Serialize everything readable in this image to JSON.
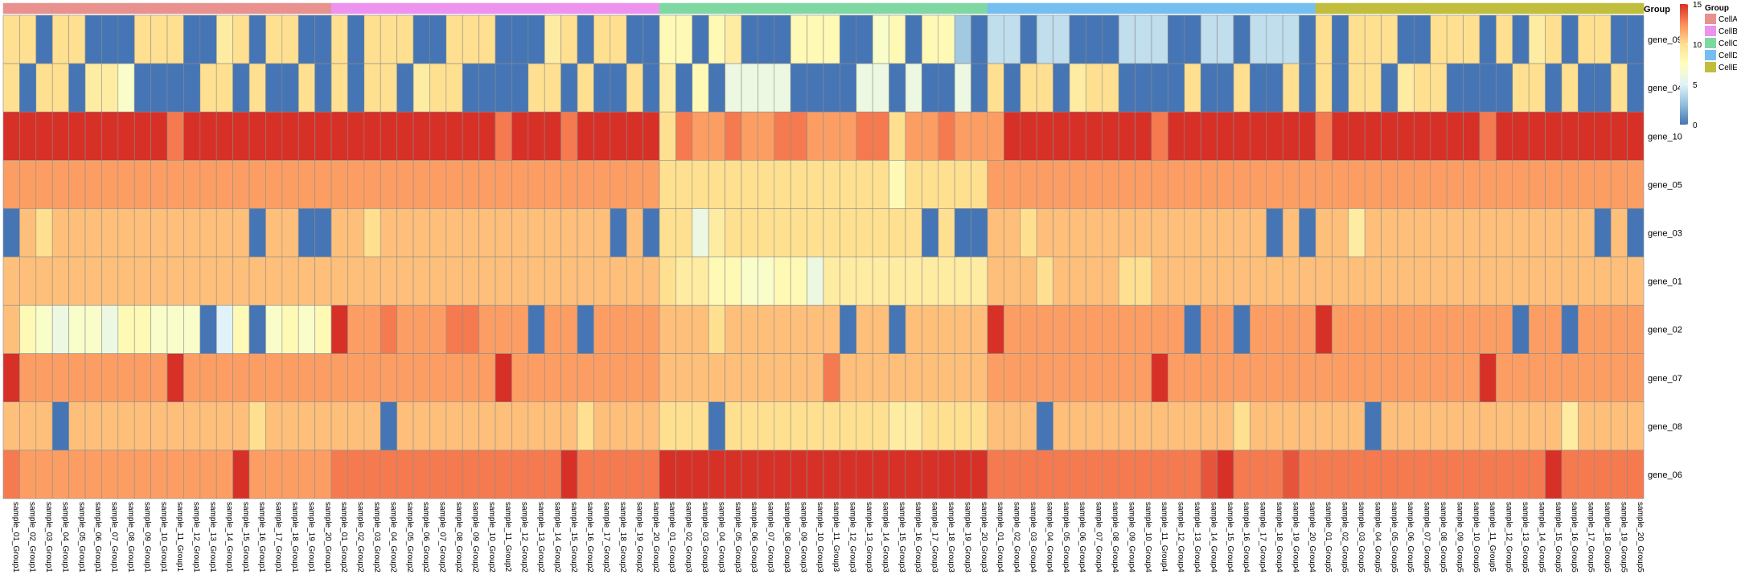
{
  "chart_data": {
    "type": "heatmap",
    "annotation_title": "Group",
    "annotation_legend_title": "Group",
    "color_scale": {
      "min": 0,
      "max": 15,
      "ticks": [
        0,
        5,
        10,
        15
      ],
      "colors": [
        "#4575b4",
        "#91bfdb",
        "#e0f3f8",
        "#ffffbf",
        "#fee090",
        "#fc8d59",
        "#d73027"
      ]
    },
    "groups": [
      {
        "name": "CellA",
        "color": "#e8918f"
      },
      {
        "name": "CellB",
        "color": "#ee92ef"
      },
      {
        "name": "CellC",
        "color": "#7fd8a2"
      },
      {
        "name": "CellD",
        "color": "#74bff0"
      },
      {
        "name": "CellE",
        "color": "#c0be3c"
      }
    ],
    "group_sizes": [
      20,
      20,
      20,
      20,
      20
    ],
    "rows": [
      "gene_09",
      "gene_04",
      "gene_10",
      "gene_05",
      "gene_03",
      "gene_01",
      "gene_02",
      "gene_07",
      "gene_08",
      "gene_06"
    ],
    "columns": [
      "sample_01_Group1",
      "sample_02_Group1",
      "sample_03_Group1",
      "sample_04_Group1",
      "sample_05_Group1",
      "sample_06_Group1",
      "sample_07_Group1",
      "sample_08_Group1",
      "sample_09_Group1",
      "sample_10_Group1",
      "sample_11_Group1",
      "sample_12_Group1",
      "sample_13_Group1",
      "sample_14_Group1",
      "sample_15_Group1",
      "sample_16_Group1",
      "sample_17_Group1",
      "sample_18_Group1",
      "sample_19_Group1",
      "sample_20_Group1",
      "sample_01_Group2",
      "sample_02_Group2",
      "sample_03_Group2",
      "sample_04_Group2",
      "sample_05_Group2",
      "sample_06_Group2",
      "sample_07_Group2",
      "sample_08_Group2",
      "sample_09_Group2",
      "sample_10_Group2",
      "sample_11_Group2",
      "sample_12_Group2",
      "sample_13_Group2",
      "sample_14_Group2",
      "sample_15_Group2",
      "sample_16_Group2",
      "sample_17_Group2",
      "sample_18_Group2",
      "sample_19_Group2",
      "sample_20_Group2",
      "sample_01_Group3",
      "sample_02_Group3",
      "sample_03_Group3",
      "sample_04_Group3",
      "sample_05_Group3",
      "sample_06_Group3",
      "sample_07_Group3",
      "sample_08_Group3",
      "sample_09_Group3",
      "sample_10_Group3",
      "sample_11_Group3",
      "sample_12_Group3",
      "sample_13_Group3",
      "sample_14_Group3",
      "sample_15_Group3",
      "sample_16_Group3",
      "sample_17_Group3",
      "sample_18_Group3",
      "sample_19_Group3",
      "sample_20_Group3",
      "sample_01_Group4",
      "sample_02_Group4",
      "sample_03_Group4",
      "sample_04_Group4",
      "sample_05_Group4",
      "sample_06_Group4",
      "sample_07_Group4",
      "sample_08_Group4",
      "sample_09_Group4",
      "sample_10_Group4",
      "sample_11_Group4",
      "sample_12_Group4",
      "sample_13_Group4",
      "sample_14_Group4",
      "sample_15_Group4",
      "sample_16_Group4",
      "sample_17_Group4",
      "sample_18_Group4",
      "sample_19_Group4",
      "sample_20_Group4",
      "sample_01_Group5",
      "sample_02_Group5",
      "sample_03_Group5",
      "sample_04_Group5",
      "sample_05_Group5",
      "sample_06_Group5",
      "sample_07_Group5",
      "sample_08_Group5",
      "sample_09_Group5",
      "sample_10_Group5",
      "sample_11_Group5",
      "sample_12_Group5",
      "sample_13_Group5",
      "sample_14_Group5",
      "sample_15_Group5",
      "sample_16_Group5",
      "sample_17_Group5",
      "sample_18_Group5",
      "sample_19_Group5",
      "sample_20_Group5"
    ],
    "values": [
      [
        10,
        10,
        0,
        10,
        10,
        0,
        0,
        0,
        10,
        10,
        10,
        0,
        0,
        9,
        10,
        0,
        10,
        10,
        0,
        0,
        10,
        0,
        10,
        10,
        10,
        0,
        0,
        10,
        10,
        10,
        0,
        0,
        0,
        9,
        10,
        0,
        10,
        10,
        0,
        0,
        8,
        8,
        0,
        8,
        9,
        0,
        0,
        0,
        8,
        8,
        8,
        0,
        0,
        7,
        8,
        0,
        8,
        8,
        3,
        0,
        4,
        4,
        0,
        4,
        4,
        0,
        0,
        0,
        4,
        4,
        4,
        0,
        0,
        4,
        4,
        0,
        4,
        4,
        4,
        0,
        10,
        0,
        10,
        10,
        10,
        0,
        0,
        10,
        10,
        10,
        0,
        10,
        0,
        9,
        10,
        0,
        10,
        10,
        0,
        0
      ],
      [
        10,
        0,
        10,
        10,
        0,
        9,
        9,
        7,
        0,
        0,
        0,
        0,
        10,
        10,
        0,
        10,
        0,
        0,
        10,
        0,
        10,
        0,
        10,
        10,
        0,
        9,
        10,
        10,
        0,
        0,
        0,
        0,
        10,
        10,
        0,
        10,
        0,
        0,
        10,
        0,
        9,
        0,
        8,
        0,
        6,
        6,
        6,
        6,
        0,
        0,
        0,
        0,
        6,
        6,
        0,
        6,
        0,
        0,
        6,
        0,
        10,
        0,
        10,
        10,
        0,
        9,
        10,
        10,
        0,
        0,
        0,
        0,
        10,
        0,
        0,
        10,
        0,
        0,
        10,
        0,
        10,
        0,
        10,
        10,
        0,
        9,
        10,
        10,
        0,
        0,
        0,
        0,
        10,
        10,
        0,
        10,
        0,
        0,
        10,
        0
      ],
      [
        15,
        15,
        15,
        15,
        15,
        15,
        15,
        15,
        15,
        15,
        13,
        15,
        15,
        15,
        15,
        15,
        15,
        15,
        15,
        15,
        15,
        15,
        15,
        15,
        15,
        15,
        15,
        15,
        15,
        15,
        13,
        15,
        15,
        15,
        13,
        15,
        15,
        15,
        15,
        15,
        10,
        13,
        12,
        12,
        13,
        12,
        12,
        13,
        13,
        12,
        12,
        12,
        13,
        13,
        10,
        12,
        12,
        13,
        12,
        12,
        12,
        15,
        15,
        15,
        15,
        15,
        15,
        15,
        15,
        15,
        13,
        15,
        15,
        15,
        15,
        15,
        15,
        15,
        15,
        15,
        13,
        15,
        15,
        15,
        15,
        15,
        15,
        15,
        15,
        15,
        13,
        15,
        15,
        15,
        15,
        15,
        15,
        15,
        15,
        15
      ],
      [
        12,
        12,
        12,
        12,
        12,
        12,
        12,
        12,
        12,
        12,
        12,
        12,
        12,
        12,
        12,
        12,
        12,
        12,
        12,
        12,
        12,
        12,
        12,
        12,
        12,
        12,
        12,
        12,
        12,
        12,
        12,
        12,
        12,
        12,
        12,
        12,
        12,
        12,
        12,
        12,
        10,
        10,
        10,
        10,
        10,
        10,
        10,
        10,
        10,
        10,
        10,
        10,
        10,
        10,
        8,
        10,
        10,
        10,
        10,
        10,
        12,
        12,
        12,
        12,
        12,
        12,
        12,
        12,
        12,
        12,
        12,
        12,
        12,
        12,
        12,
        12,
        12,
        12,
        12,
        12,
        12,
        12,
        12,
        12,
        12,
        12,
        12,
        12,
        12,
        12,
        12,
        12,
        12,
        12,
        12,
        12,
        12,
        12,
        12,
        12
      ],
      [
        0,
        11,
        10,
        11,
        11,
        11,
        11,
        11,
        11,
        11,
        11,
        11,
        11,
        11,
        11,
        0,
        11,
        11,
        0,
        0,
        11,
        11,
        10,
        11,
        11,
        11,
        11,
        11,
        11,
        11,
        11,
        11,
        11,
        11,
        11,
        11,
        11,
        0,
        11,
        0,
        10,
        10,
        6,
        9,
        10,
        10,
        10,
        10,
        10,
        10,
        10,
        10,
        10,
        10,
        10,
        10,
        0,
        10,
        0,
        0,
        11,
        11,
        10,
        11,
        11,
        11,
        11,
        11,
        11,
        11,
        11,
        11,
        11,
        11,
        11,
        11,
        11,
        0,
        11,
        0,
        11,
        11,
        9,
        11,
        11,
        11,
        11,
        11,
        11,
        11,
        11,
        11,
        11,
        11,
        11,
        11,
        11,
        0,
        11,
        0
      ],
      [
        11,
        11,
        11,
        11,
        11,
        11,
        11,
        11,
        11,
        11,
        11,
        11,
        11,
        11,
        11,
        11,
        11,
        11,
        11,
        11,
        11,
        11,
        11,
        11,
        11,
        11,
        11,
        11,
        11,
        11,
        11,
        11,
        11,
        11,
        11,
        11,
        11,
        11,
        11,
        11,
        10,
        9,
        9,
        8,
        8,
        7,
        7,
        8,
        8,
        6,
        9,
        9,
        9,
        9,
        9,
        9,
        9,
        9,
        9,
        9,
        11,
        11,
        11,
        10,
        11,
        11,
        11,
        11,
        10,
        10,
        11,
        11,
        11,
        11,
        11,
        11,
        11,
        11,
        11,
        11,
        11,
        11,
        11,
        11,
        11,
        11,
        11,
        11,
        11,
        11,
        11,
        11,
        11,
        11,
        11,
        11,
        11,
        11,
        11,
        11
      ],
      [
        11,
        8,
        7,
        6,
        7,
        7,
        6,
        8,
        8,
        7,
        7,
        7,
        0,
        5,
        8,
        0,
        7,
        8,
        7,
        8,
        15,
        12,
        12,
        13,
        12,
        12,
        12,
        13,
        13,
        12,
        12,
        12,
        0,
        12,
        12,
        0,
        12,
        12,
        12,
        12,
        11,
        11,
        11,
        10,
        11,
        11,
        11,
        11,
        11,
        11,
        11,
        0,
        11,
        11,
        0,
        11,
        11,
        11,
        11,
        11,
        15,
        12,
        12,
        12,
        12,
        12,
        12,
        12,
        12,
        12,
        12,
        12,
        0,
        12,
        12,
        0,
        12,
        12,
        12,
        12,
        15,
        12,
        12,
        12,
        12,
        12,
        12,
        12,
        12,
        12,
        12,
        12,
        0,
        12,
        12,
        0,
        12,
        12,
        12,
        12
      ],
      [
        15,
        12,
        12,
        12,
        12,
        12,
        12,
        12,
        12,
        12,
        15,
        12,
        12,
        12,
        12,
        12,
        12,
        12,
        12,
        12,
        12,
        12,
        12,
        12,
        12,
        12,
        12,
        12,
        12,
        12,
        15,
        12,
        12,
        12,
        12,
        12,
        12,
        12,
        12,
        12,
        11,
        11,
        11,
        11,
        11,
        11,
        11,
        11,
        11,
        11,
        13,
        11,
        11,
        11,
        11,
        11,
        11,
        11,
        11,
        11,
        12,
        12,
        12,
        12,
        12,
        12,
        12,
        12,
        12,
        12,
        15,
        12,
        12,
        12,
        12,
        12,
        12,
        12,
        12,
        12,
        12,
        12,
        12,
        12,
        12,
        12,
        12,
        12,
        12,
        12,
        15,
        12,
        12,
        12,
        12,
        12,
        12,
        12,
        12,
        12
      ],
      [
        11,
        11,
        11,
        0,
        11,
        11,
        11,
        11,
        11,
        11,
        11,
        11,
        11,
        11,
        11,
        10,
        11,
        11,
        11,
        11,
        11,
        11,
        11,
        0,
        11,
        11,
        11,
        11,
        11,
        11,
        11,
        11,
        11,
        11,
        11,
        10,
        11,
        11,
        11,
        11,
        10,
        10,
        10,
        0,
        10,
        10,
        10,
        10,
        10,
        10,
        10,
        10,
        10,
        10,
        9,
        9,
        10,
        10,
        10,
        10,
        11,
        11,
        11,
        0,
        11,
        11,
        11,
        11,
        11,
        11,
        11,
        11,
        11,
        11,
        11,
        10,
        11,
        11,
        11,
        11,
        11,
        11,
        11,
        0,
        11,
        11,
        11,
        11,
        11,
        11,
        11,
        11,
        11,
        11,
        11,
        9,
        11,
        11,
        11,
        11
      ],
      [
        13,
        12,
        12,
        12,
        12,
        12,
        12,
        12,
        12,
        12,
        12,
        12,
        12,
        12,
        15,
        12,
        12,
        12,
        12,
        12,
        13,
        13,
        13,
        13,
        13,
        13,
        13,
        13,
        13,
        13,
        13,
        13,
        13,
        13,
        15,
        13,
        13,
        13,
        13,
        13,
        15,
        15,
        15,
        15,
        15,
        15,
        15,
        15,
        15,
        15,
        15,
        15,
        15,
        15,
        15,
        15,
        15,
        15,
        15,
        15,
        13,
        13,
        13,
        13,
        13,
        13,
        13,
        13,
        13,
        13,
        13,
        13,
        13,
        14,
        15,
        13,
        13,
        13,
        14,
        13,
        13,
        13,
        13,
        13,
        13,
        13,
        13,
        13,
        13,
        13,
        13,
        13,
        13,
        13,
        15,
        13,
        13,
        13,
        13,
        13
      ]
    ]
  }
}
